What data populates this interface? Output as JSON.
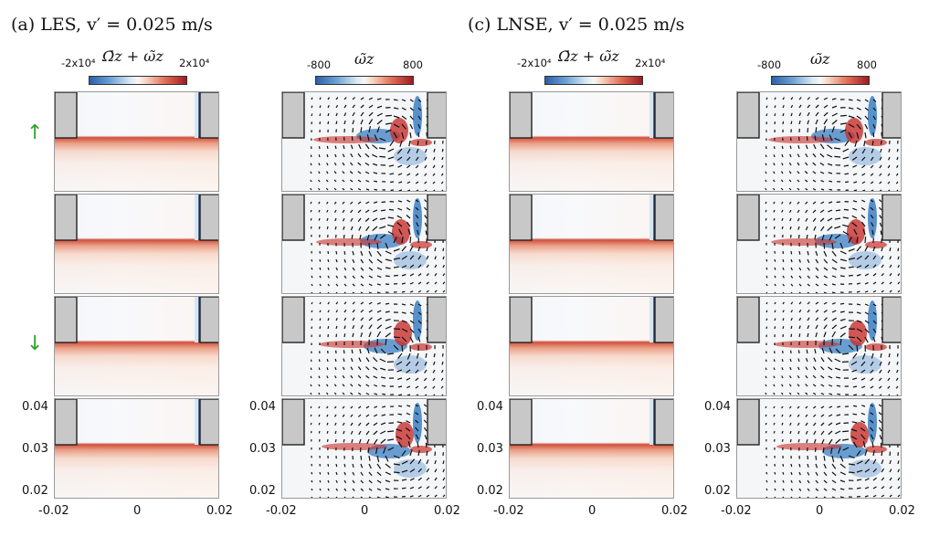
{
  "titles": {
    "left": "(a) LES, v′ = 0.025 m/s",
    "right": "(c) LNSE, v′ = 0.025 m/s"
  },
  "colorbars": {
    "total": {
      "title": "Ω̄z + ω̃z",
      "min_label": "-2x10⁴",
      "max_label": "2x10⁴",
      "min": -20000,
      "max": 20000
    },
    "pert": {
      "title": "ω̃z",
      "min_label": "-800",
      "max_label": "800",
      "min": -800,
      "max": 800
    }
  },
  "phase_arrows": {
    "up": "↑",
    "down": "↓",
    "color": "#2ea52e"
  },
  "axes": {
    "x_ticks": [
      "-0.02",
      "0",
      "0.02"
    ],
    "y_ticks": [
      "0.04",
      "0.03",
      "0.02"
    ],
    "x_values": [
      -0.02,
      0,
      0.02
    ],
    "y_values": [
      0.04,
      0.03,
      0.02
    ]
  },
  "colors": {
    "positive": "#c8302a",
    "negative": "#3b7fc4",
    "wall": "#c8c8c8",
    "vector": "#111111"
  }
}
